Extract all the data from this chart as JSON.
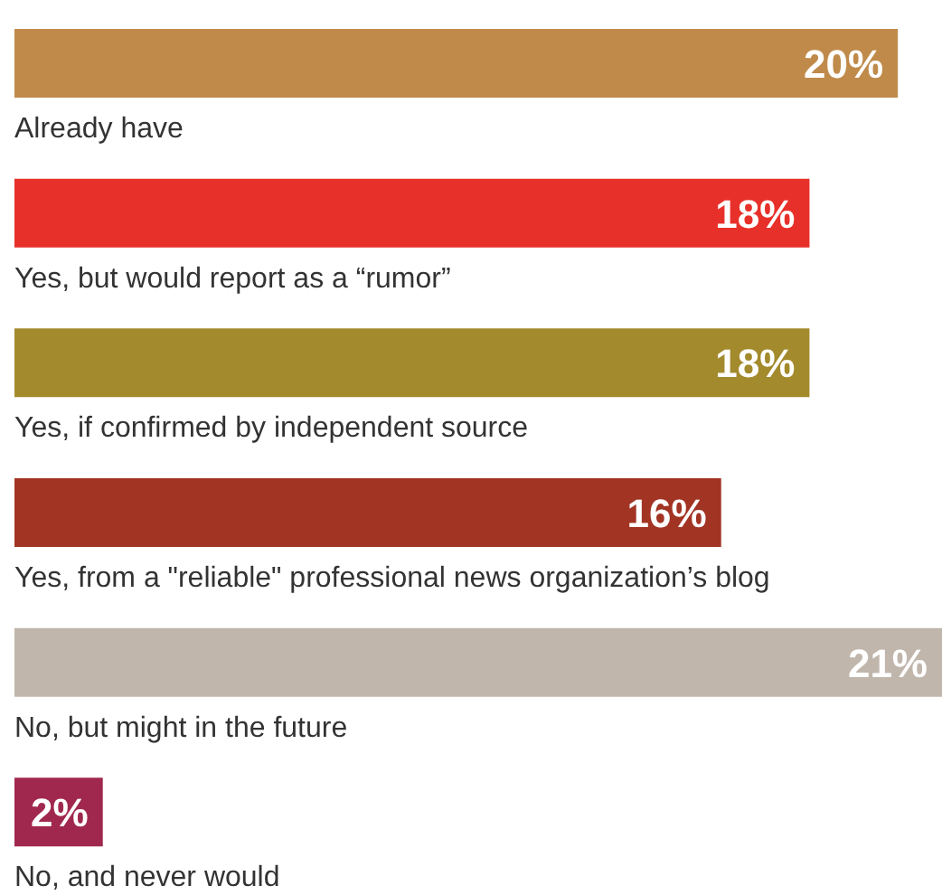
{
  "chart_data": {
    "type": "bar",
    "orientation": "horizontal",
    "categories": [
      "Already have",
      "Yes, but would report as a “rumor”",
      "Yes, if confirmed by independent source",
      "Yes, from a \"reliable\" professional news organization’s blog",
      "No, but might in the future",
      "No, and never would"
    ],
    "values": [
      20,
      18,
      18,
      16,
      21,
      2
    ],
    "value_labels": [
      "20%",
      "18%",
      "18%",
      "16%",
      "21%",
      "2%"
    ],
    "colors": [
      "#c08a4a",
      "#e8302a",
      "#a38a2c",
      "#a23424",
      "#c0b6ac",
      "#a0284e"
    ]
  }
}
